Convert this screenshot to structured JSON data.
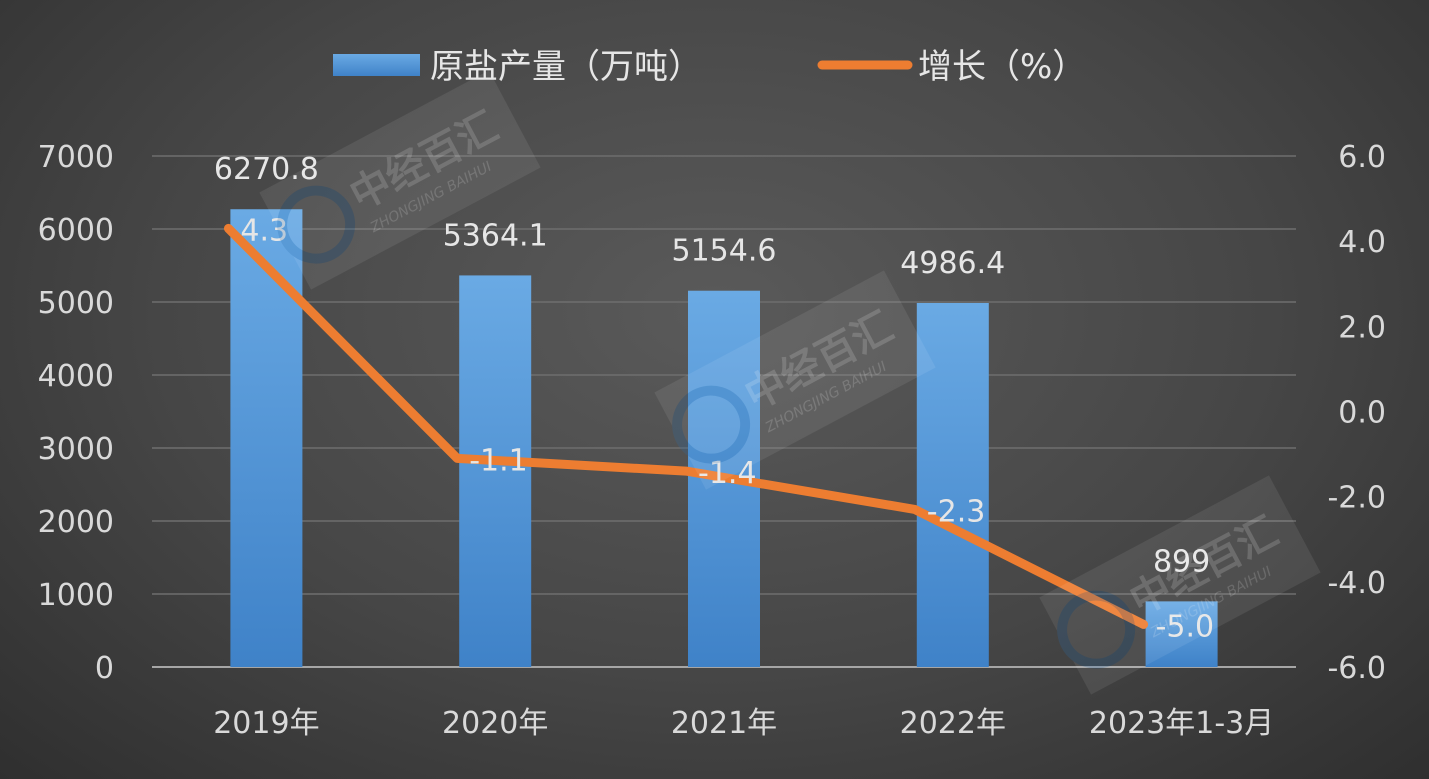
{
  "chart_data": {
    "type": "bar+line",
    "categories": [
      "2019年",
      "2020年",
      "2021年",
      "2022年",
      "2023年1-3月"
    ],
    "series": [
      {
        "name": "原盐产量（万吨）",
        "type": "bar",
        "axis": "left",
        "values": [
          6270.8,
          5364.1,
          5154.6,
          4986.4,
          899
        ],
        "labels": [
          "6270.8",
          "5364.1",
          "5154.6",
          "4986.4",
          "899"
        ],
        "color": "#5b9bd5"
      },
      {
        "name": "增长（%）",
        "type": "line",
        "axis": "right",
        "values": [
          4.3,
          -1.1,
          -1.4,
          -2.3,
          -5.0
        ],
        "labels": [
          "4.3",
          "-1.1",
          "-1.4",
          "-2.3",
          "-5.0"
        ],
        "color": "#ed7d31"
      }
    ],
    "y_left": {
      "min": 0,
      "max": 7000,
      "ticks": [
        "0",
        "1000",
        "2000",
        "3000",
        "4000",
        "5000",
        "6000",
        "7000"
      ]
    },
    "y_right": {
      "min": -6,
      "max": 6,
      "ticks": [
        "-6.0",
        "-4.0",
        "-2.0",
        "0.0",
        "2.0",
        "4.0",
        "6.0"
      ]
    },
    "grid": true,
    "legend_position": "top-center"
  },
  "watermark": {
    "text": "中经百汇",
    "subtext": "ZHONGJING BAIHUI"
  }
}
